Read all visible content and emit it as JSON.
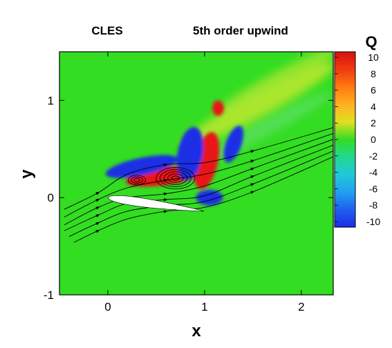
{
  "chart_data": {
    "type": "heatmap",
    "title_left": "CLES",
    "title_right": "5th order upwind",
    "xlabel": "x",
    "ylabel": "y",
    "colorbar_label": "Q",
    "xlim": [
      -0.5,
      2.33
    ],
    "ylim": [
      -1,
      1.5
    ],
    "x_ticks": [
      "0",
      "1",
      "2"
    ],
    "x_tick_values": [
      0,
      1,
      2
    ],
    "y_ticks": [
      "-1",
      "0",
      "1"
    ],
    "y_tick_values": [
      -1,
      0,
      1
    ],
    "colorbar_ticks": [
      "10",
      "8",
      "6",
      "4",
      "2",
      "0",
      "-2",
      "-4",
      "-6",
      "-8",
      "-10"
    ],
    "colorbar_tick_values": [
      10,
      8,
      6,
      4,
      2,
      0,
      -2,
      -4,
      -6,
      -8,
      -10
    ],
    "colorbar_range": [
      -10,
      10
    ],
    "background_value": 0,
    "colors": {
      "background": "#33dd22",
      "high": "#e81818",
      "low": "#1a2ee6",
      "airfoil": "#ffffff"
    },
    "features": [
      {
        "kind": "positive",
        "x": 0.6,
        "y": 0.22,
        "rx": 0.42,
        "ry": 0.09,
        "rotate": -8
      },
      {
        "kind": "positive",
        "x": 1.02,
        "y": 0.38,
        "rx": 0.12,
        "ry": 0.3,
        "rotate": 12
      },
      {
        "kind": "positive",
        "x": 1.14,
        "y": 0.92,
        "rx": 0.06,
        "ry": 0.08,
        "rotate": 0
      },
      {
        "kind": "positive",
        "x": 0.84,
        "y": 0.58,
        "rx": 0.06,
        "ry": 0.12,
        "rotate": 15
      },
      {
        "kind": "negative",
        "x": 0.35,
        "y": 0.32,
        "rx": 0.38,
        "ry": 0.09,
        "rotate": -12
      },
      {
        "kind": "negative",
        "x": 0.85,
        "y": 0.45,
        "rx": 0.13,
        "ry": 0.28,
        "rotate": 10
      },
      {
        "kind": "negative",
        "x": 1.3,
        "y": 0.55,
        "rx": 0.08,
        "ry": 0.2,
        "rotate": 20
      },
      {
        "kind": "negative",
        "x": 1.05,
        "y": 0.0,
        "rx": 0.14,
        "ry": 0.08,
        "rotate": 0
      }
    ],
    "airfoil": {
      "x": [
        0.0,
        1.0
      ],
      "max_thickness_y": 0.09,
      "angle_of_attack_deg": 8
    },
    "streamlines": [
      {
        "x": [
          -0.45,
          -0.1,
          0.2,
          0.6,
          1.0,
          1.5,
          2.33
        ],
        "y": [
          -0.12,
          0.05,
          0.24,
          0.34,
          0.36,
          0.48,
          0.72
        ]
      },
      {
        "x": [
          -0.45,
          -0.1,
          0.2,
          0.6,
          1.0,
          1.5,
          2.33
        ],
        "y": [
          -0.2,
          -0.02,
          0.1,
          0.18,
          0.24,
          0.38,
          0.66
        ]
      },
      {
        "x": [
          -0.45,
          -0.1,
          0.2,
          0.6,
          1.0,
          1.5,
          2.33
        ],
        "y": [
          -0.28,
          -0.1,
          0.0,
          0.04,
          0.12,
          0.3,
          0.6
        ]
      },
      {
        "x": [
          -0.45,
          -0.1,
          0.2,
          0.6,
          1.0,
          1.5,
          2.33
        ],
        "y": [
          -0.34,
          -0.18,
          -0.06,
          -0.02,
          0.02,
          0.22,
          0.54
        ]
      },
      {
        "x": [
          -0.4,
          -0.1,
          0.2,
          0.6,
          1.0,
          1.5,
          2.33
        ],
        "y": [
          -0.4,
          -0.26,
          -0.14,
          -0.08,
          -0.04,
          0.14,
          0.48
        ]
      },
      {
        "x": [
          -0.35,
          -0.1,
          0.2,
          0.6,
          1.0,
          1.5,
          2.33
        ],
        "y": [
          -0.46,
          -0.34,
          -0.22,
          -0.14,
          -0.1,
          0.06,
          0.42
        ]
      }
    ],
    "vortices": [
      {
        "x": 0.7,
        "y": 0.2,
        "radii": [
          0.04,
          0.08,
          0.12,
          0.16,
          0.2
        ]
      },
      {
        "x": 0.3,
        "y": 0.18,
        "radii": [
          0.03,
          0.06,
          0.09
        ]
      }
    ]
  }
}
